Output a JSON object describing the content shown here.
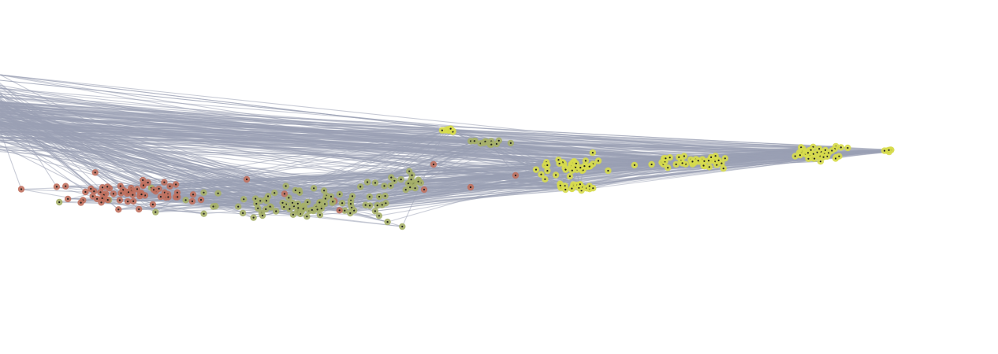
{
  "graph": {
    "type": "network",
    "layout": "spread-left-to-right",
    "background_color": "#ffffff",
    "edge_color": "#9aa0b4",
    "node_center_color": "#222222",
    "node_colors": {
      "red": "#c0705e",
      "olive": "#a6b069",
      "yellow": "#d7dc4c"
    },
    "clusters": [
      {
        "name": "left-red",
        "color_key": "red"
      },
      {
        "name": "mid-olive",
        "color_key": "olive"
      },
      {
        "name": "center-yellow",
        "color_key": "yellow"
      },
      {
        "name": "right-tip",
        "color_key": "yellow"
      }
    ],
    "has_labels": false,
    "has_legend": false,
    "has_axes": false
  }
}
